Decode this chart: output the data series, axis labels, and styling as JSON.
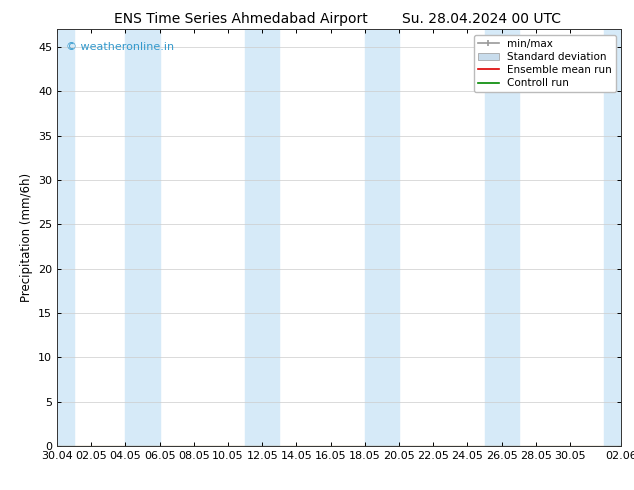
{
  "title_left": "ENS Time Series Ahmedabad Airport",
  "title_right": "Su. 28.04.2024 00 UTC",
  "ylabel": "Precipitation (mm/6h)",
  "ylim": [
    0,
    47
  ],
  "yticks": [
    0,
    5,
    10,
    15,
    20,
    25,
    30,
    35,
    40,
    45
  ],
  "bg_color": "#ffffff",
  "plot_bg_color": "#ffffff",
  "watermark": "© weatheronline.in",
  "watermark_color": "#3399cc",
  "xtick_labels": [
    "30.04",
    "02.05",
    "04.05",
    "06.05",
    "08.05",
    "10.05",
    "12.05",
    "14.05",
    "16.05",
    "18.05",
    "20.05",
    "22.05",
    "24.05",
    "26.05",
    "28.05",
    "30.05",
    "02.06"
  ],
  "xtick_positions": [
    0,
    2,
    4,
    6,
    8,
    10,
    12,
    14,
    16,
    18,
    20,
    22,
    24,
    26,
    28,
    30,
    33
  ],
  "xlim": [
    0,
    33
  ],
  "shaded_bands": [
    [
      0,
      1.0
    ],
    [
      4.0,
      6.0
    ],
    [
      11.0,
      13.0
    ],
    [
      18.0,
      20.0
    ],
    [
      25.0,
      27.0
    ],
    [
      32.0,
      33.0
    ]
  ],
  "shaded_color": "#d6eaf8",
  "legend_items": [
    {
      "label": "min/max",
      "color": "#999999",
      "style": "minmax"
    },
    {
      "label": "Standard deviation",
      "color": "#c8dcec",
      "style": "rect"
    },
    {
      "label": "Ensemble mean run",
      "color": "#dd0000",
      "style": "line"
    },
    {
      "label": "Controll run",
      "color": "#008800",
      "style": "line"
    }
  ],
  "grid_color": "#cccccc",
  "axis_color": "#333333",
  "title_fontsize": 10,
  "label_fontsize": 8.5,
  "tick_fontsize": 8,
  "legend_fontsize": 7.5
}
